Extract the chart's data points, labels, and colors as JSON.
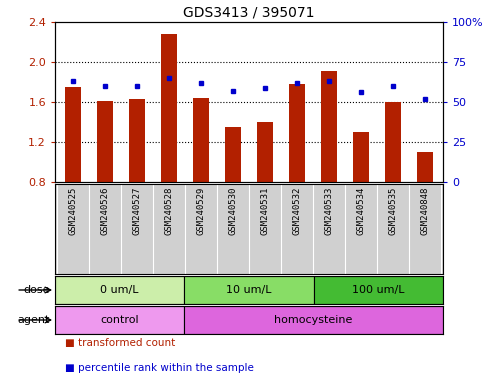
{
  "title": "GDS3413 / 395071",
  "samples": [
    "GSM240525",
    "GSM240526",
    "GSM240527",
    "GSM240528",
    "GSM240529",
    "GSM240530",
    "GSM240531",
    "GSM240532",
    "GSM240533",
    "GSM240534",
    "GSM240535",
    "GSM240848"
  ],
  "red_values": [
    1.75,
    1.61,
    1.63,
    2.28,
    1.64,
    1.35,
    1.4,
    1.78,
    1.91,
    1.3,
    1.6,
    1.1
  ],
  "blue_pct": [
    63,
    60,
    60,
    65,
    62,
    57,
    59,
    62,
    63,
    56,
    60,
    52
  ],
  "ylim": [
    0.8,
    2.4
  ],
  "y2lim": [
    0,
    100
  ],
  "yticks": [
    0.8,
    1.2,
    1.6,
    2.0,
    2.4
  ],
  "y2ticks": [
    0,
    25,
    50,
    75,
    100
  ],
  "y2ticklabels": [
    "0",
    "25",
    "50",
    "75",
    "100%"
  ],
  "red_color": "#B22000",
  "blue_color": "#0000CC",
  "bar_width": 0.5,
  "dose_groups": [
    {
      "label": "0 um/L",
      "start": 0,
      "end": 4,
      "color": "#BBEEAA"
    },
    {
      "label": "10 um/L",
      "start": 4,
      "end": 8,
      "color": "#77DD55"
    },
    {
      "label": "100 um/L",
      "start": 8,
      "end": 12,
      "color": "#44BB33"
    }
  ],
  "agent_groups": [
    {
      "label": "control",
      "start": 0,
      "end": 4,
      "color": "#EE99EE"
    },
    {
      "label": "homocysteine",
      "start": 4,
      "end": 12,
      "color": "#DD66DD"
    }
  ],
  "legend_red": "transformed count",
  "legend_blue": "percentile rank within the sample",
  "dose_label": "dose",
  "agent_label": "agent",
  "sample_bg": "#D0D0D0",
  "plot_bg": "#FFFFFF",
  "gridline_yticks": [
    1.2,
    1.6,
    2.0
  ]
}
